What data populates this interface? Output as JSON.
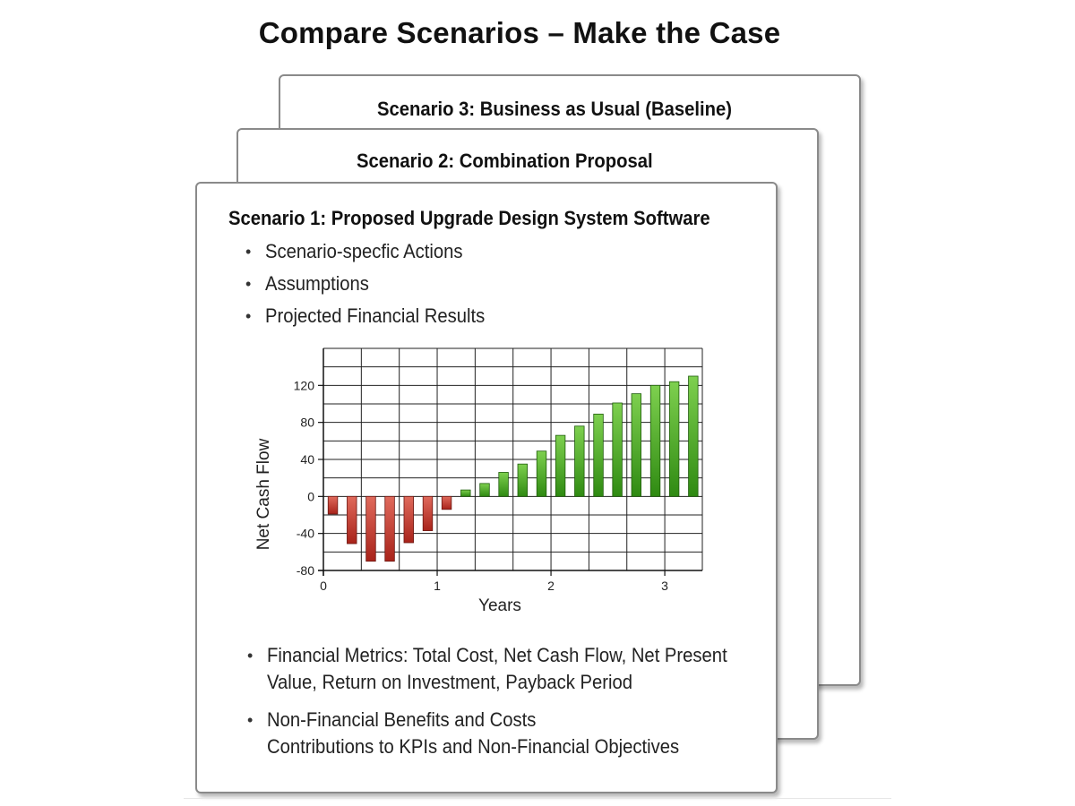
{
  "page_title": "Compare Scenarios – Make the Case",
  "scenarios": [
    {
      "title": "Scenario 3: Business as Usual (Baseline)"
    },
    {
      "title": "Scenario 2: Combination Proposal"
    },
    {
      "title": "Scenario 1: Proposed Upgrade Design System Software",
      "bullets": [
        "Scenario-specfic Actions",
        "Assumptions",
        "Projected Financial Results"
      ],
      "lower_bullets": [
        {
          "lines": [
            "Financial Metrics: Total Cost, Net Cash Flow, Net Present",
            "Value, Return on Investment, Payback Period"
          ]
        },
        {
          "lines": [
            "Non-Financial Benefits and Costs",
            "Contributions to KPIs and Non-Financial Objectives"
          ]
        }
      ]
    }
  ],
  "bullet_glyph": "•",
  "colors": {
    "negative_bar_top": "#e06a5c",
    "negative_bar_bottom": "#a8231a",
    "positive_bar_top": "#7ed04f",
    "positive_bar_bottom": "#2f8a12",
    "grid": "#222222",
    "card_border": "#8a8a8a"
  },
  "chart_data": {
    "type": "bar",
    "xlabel": "Years",
    "ylabel": "Net Cash Flow",
    "xlim": [
      0,
      3.33
    ],
    "ylim": [
      -80,
      160
    ],
    "x_ticks": [
      0,
      1,
      2,
      3
    ],
    "x_tick_labels": [
      "0",
      "1",
      "2",
      "3"
    ],
    "y_ticks": [
      -80,
      -40,
      0,
      40,
      80,
      120
    ],
    "y_tick_labels": [
      "-80",
      "-40",
      "0",
      "40",
      "80",
      "120"
    ],
    "grid": true,
    "x": [
      0.083,
      0.25,
      0.417,
      0.583,
      0.75,
      0.917,
      1.083,
      1.25,
      1.417,
      1.583,
      1.75,
      1.917,
      2.083,
      2.25,
      2.417,
      2.583,
      2.75,
      2.917,
      3.083,
      3.25
    ],
    "values": [
      -19,
      -51,
      -70,
      -70,
      -50,
      -37,
      -14,
      7,
      14,
      26,
      35,
      49,
      66,
      76,
      89,
      101,
      111,
      120,
      124,
      130
    ]
  }
}
